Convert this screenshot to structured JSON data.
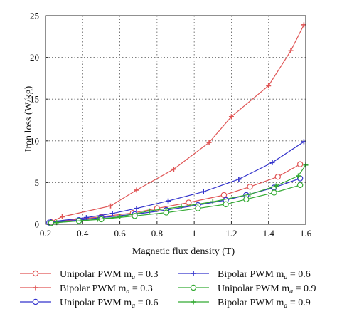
{
  "chart_data": {
    "type": "line",
    "xlabel": "Magnetic flux density (T)",
    "ylabel": "Iron loss (W/kg)",
    "xlim": [
      0.2,
      1.6
    ],
    "ylim": [
      0,
      25
    ],
    "xticks": [
      "0.2",
      "0.4",
      "0.6",
      "0.8",
      "1",
      "1.2",
      "1.4",
      "1.6"
    ],
    "yticks": [
      "0",
      "5",
      "10",
      "15",
      "20",
      "25"
    ],
    "grid": "dotted",
    "legend_position": "bottom",
    "legend_ma": "a",
    "series": [
      {
        "name": "Unipolar PWM m",
        "ma_value": " = 0.3",
        "color": "#e05555",
        "marker": "circle",
        "x": [
          0.23,
          0.5,
          0.67,
          0.8,
          0.97,
          1.16,
          1.3,
          1.45,
          1.57
        ],
        "y": [
          0.25,
          0.9,
          1.35,
          1.9,
          2.6,
          3.5,
          4.5,
          5.7,
          7.2
        ]
      },
      {
        "name": "Bipolar PWM m",
        "ma_value": " = 0.3",
        "color": "#e05555",
        "marker": "plus",
        "x": [
          0.23,
          0.29,
          0.55,
          0.69,
          0.89,
          1.08,
          1.2,
          1.4,
          1.52,
          1.59
        ],
        "y": [
          0.3,
          0.9,
          2.2,
          4.1,
          6.6,
          9.8,
          12.9,
          16.6,
          20.8,
          23.9
        ]
      },
      {
        "name": "Unipolar PWM m",
        "ma_value": " = 0.6",
        "color": "#3333cc",
        "marker": "circle",
        "x": [
          0.22,
          0.38,
          0.5,
          0.68,
          0.85,
          1.02,
          1.17,
          1.28,
          1.43,
          1.57
        ],
        "y": [
          0.2,
          0.5,
          0.8,
          1.2,
          1.7,
          2.3,
          2.9,
          3.5,
          4.4,
          5.5
        ]
      },
      {
        "name": "Bipolar PWM m",
        "ma_value": " = 0.6",
        "color": "#3333cc",
        "marker": "plus",
        "x": [
          0.23,
          0.42,
          0.56,
          0.69,
          0.86,
          1.05,
          1.24,
          1.42,
          1.59
        ],
        "y": [
          0.3,
          0.8,
          1.3,
          1.9,
          2.8,
          3.9,
          5.4,
          7.4,
          9.9
        ]
      },
      {
        "name": "Unipolar PWM m",
        "ma_value": " = 0.9",
        "color": "#33aa33",
        "marker": "circle",
        "x": [
          0.23,
          0.38,
          0.5,
          0.68,
          0.85,
          1.02,
          1.17,
          1.28,
          1.43,
          1.57
        ],
        "y": [
          0.15,
          0.4,
          0.6,
          1.0,
          1.4,
          1.9,
          2.4,
          3.0,
          3.8,
          4.7
        ]
      },
      {
        "name": "Bipolar PWM m",
        "ma_value": " = 0.9",
        "color": "#33aa33",
        "marker": "plus",
        "x": [
          0.26,
          0.48,
          0.6,
          0.76,
          0.93,
          1.1,
          1.3,
          1.44,
          1.56,
          1.6
        ],
        "y": [
          0.2,
          0.6,
          0.9,
          1.6,
          2.1,
          2.7,
          3.6,
          4.6,
          5.8,
          7.1
        ]
      }
    ]
  }
}
